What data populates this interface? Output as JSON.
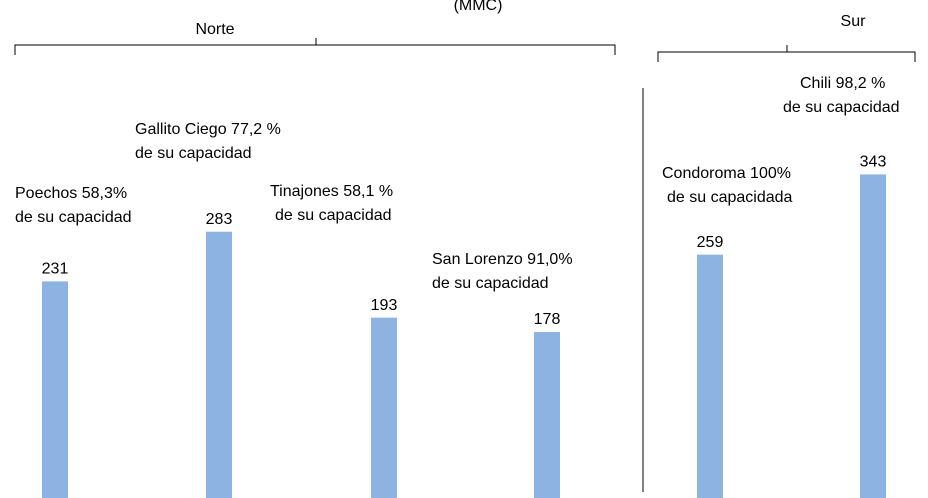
{
  "chart_data": {
    "type": "bar",
    "title": "(MMC)",
    "groups": [
      "Norte",
      "Sur"
    ],
    "categories": [
      [
        "Poechos 58,3%",
        "de su capacidad"
      ],
      [
        "Gallito  Ciego 77,2 %",
        "de su capacidad"
      ],
      [
        "Tinajones 58,1 %",
        "de su capacidad"
      ],
      [
        "San Lorenzo 91,0%",
        "de su capacidad"
      ],
      [
        "Condoroma  100%",
        "de su capacidada"
      ],
      [
        "Chili 98,2 %",
        "de su capacidad"
      ]
    ],
    "values": [
      231,
      283,
      193,
      178,
      259,
      343
    ],
    "color": "#8db3e2"
  }
}
